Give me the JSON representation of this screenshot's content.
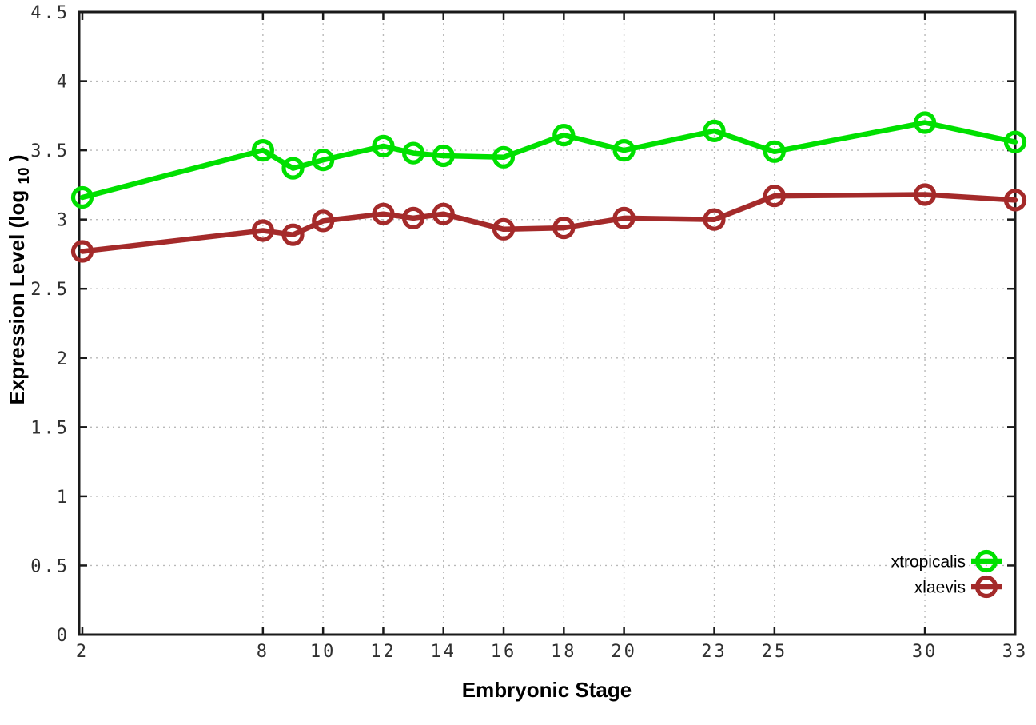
{
  "chart_data": {
    "type": "line",
    "title": "",
    "xlabel": "Embryonic Stage",
    "ylabel": "Expression Level (log10)",
    "ylabel_parts": {
      "prefix": "Expression Level (log",
      "sub": "10",
      "suffix": ")"
    },
    "x": [
      2,
      8,
      9,
      10,
      12,
      13,
      14,
      16,
      18,
      20,
      23,
      25,
      30,
      33
    ],
    "series": [
      {
        "name": "xtropicalis",
        "color": "#00e000",
        "values": [
          3.16,
          3.5,
          3.37,
          3.43,
          3.53,
          3.48,
          3.46,
          3.45,
          3.61,
          3.5,
          3.64,
          3.49,
          3.7,
          3.56
        ]
      },
      {
        "name": "xlaevis",
        "color": "#a42a2a",
        "values": [
          2.77,
          2.92,
          2.89,
          2.99,
          3.04,
          3.01,
          3.04,
          2.93,
          2.94,
          3.01,
          3.0,
          3.17,
          3.18,
          3.14
        ]
      }
    ],
    "x_tick_values": [
      2,
      8,
      10,
      12,
      14,
      16,
      18,
      20,
      23,
      25,
      30,
      33
    ],
    "x_tick_labels": [
      "2",
      "8",
      "10",
      "12",
      "14",
      "16",
      "18",
      "20",
      "23",
      "25",
      "30",
      "33"
    ],
    "y_tick_values": [
      0,
      0.5,
      1,
      1.5,
      2,
      2.5,
      3,
      3.5,
      4,
      4.5
    ],
    "y_tick_labels": [
      "0",
      "0.5",
      "1",
      "1.5",
      "2",
      "2.5",
      "3",
      "3.5",
      "4",
      "4.5"
    ],
    "xlim": [
      2,
      33
    ],
    "ylim": [
      0,
      4.5
    ],
    "grid": true,
    "legend_position": "bottom-right",
    "colors": {
      "axis": "#1a1a1a",
      "grid": "#b9b9b9",
      "tick_text": "#303030",
      "background": "#ffffff"
    }
  }
}
